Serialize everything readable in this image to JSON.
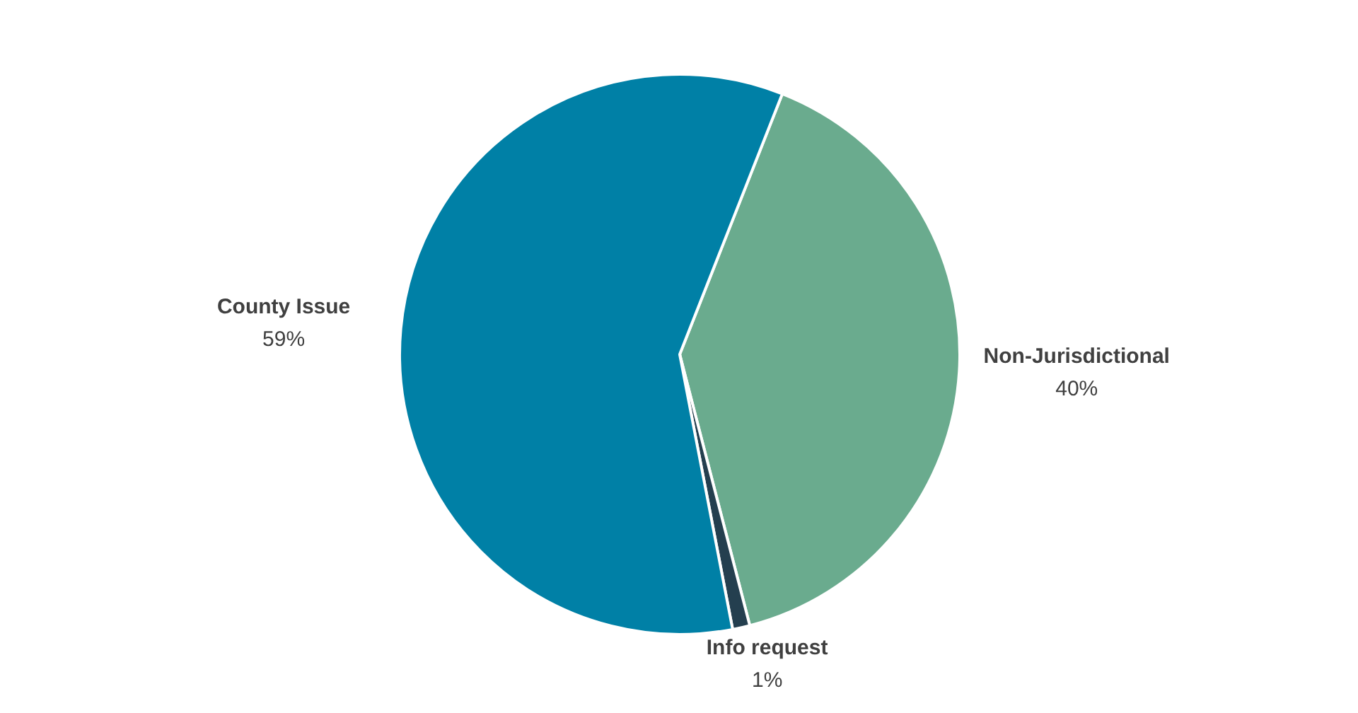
{
  "chart_data": {
    "type": "pie",
    "categories": [
      "Non-Jurisdictional",
      "Info request",
      "County Issue"
    ],
    "values": [
      40,
      1,
      59
    ],
    "value_labels": [
      "40%",
      "1%",
      "59%"
    ],
    "colors": [
      "#6aab8e",
      "#243f4f",
      "#0080a6"
    ]
  }
}
